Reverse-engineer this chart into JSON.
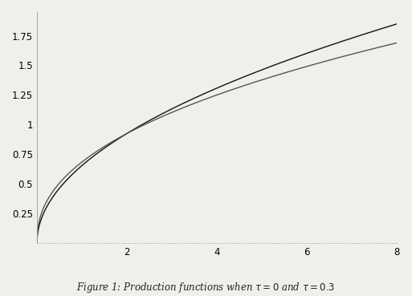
{
  "title": "Figure 1: Production functions when $\\tau=0$ and $\\tau = 0.3$",
  "xmin": 0,
  "xmax": 8,
  "ymin": 0,
  "ymax": 1.95,
  "yticks": [
    0.25,
    0.5,
    0.75,
    1,
    1.25,
    1.5,
    1.75
  ],
  "xticks": [
    2,
    4,
    6,
    8
  ],
  "a": 0.6,
  "b": 0.543,
  "tau": 0.3,
  "line_color1": "#111111",
  "line_color2": "#555555",
  "line_width": 1.0,
  "background_color": "#f0efeb",
  "figsize": [
    5.13,
    3.69
  ],
  "dpi": 100
}
